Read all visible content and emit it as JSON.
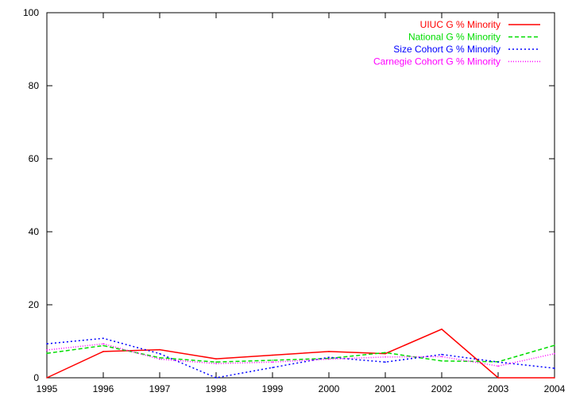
{
  "chart_data": {
    "type": "line",
    "title": "",
    "xlabel": "",
    "ylabel": "",
    "x": [
      1995,
      1996,
      1997,
      1998,
      1999,
      2000,
      2001,
      2002,
      2003,
      2004
    ],
    "xlim": [
      1995,
      2004
    ],
    "ylim": [
      0,
      100
    ],
    "xticks": [
      "1995",
      "1996",
      "1997",
      "1998",
      "1999",
      "2000",
      "2001",
      "2002",
      "2003",
      "2004"
    ],
    "yticks": [
      "0",
      "20",
      "40",
      "60",
      "80",
      "100"
    ],
    "grid": false,
    "legend_position": "top-right",
    "series": [
      {
        "name": "UIUC G % Minority",
        "color": "#ff0000",
        "dash": "solid",
        "values": [
          0.0,
          7.2,
          7.7,
          5.2,
          6.2,
          7.2,
          6.6,
          13.3,
          0.0,
          0.0
        ]
      },
      {
        "name": "National G % Minority",
        "color": "#00dd00",
        "dash": "dashed",
        "values": [
          6.7,
          8.8,
          5.5,
          4.3,
          4.8,
          5.3,
          6.9,
          4.6,
          4.4,
          8.9
        ]
      },
      {
        "name": "Size Cohort G % Minority",
        "color": "#0000ff",
        "dash": "dotted",
        "values": [
          9.3,
          10.8,
          6.6,
          0.0,
          2.8,
          5.6,
          4.3,
          6.4,
          4.3,
          2.6
        ]
      },
      {
        "name": "Carnegie Cohort G % Minority",
        "color": "#ff00ff",
        "dash": "fine-dotted",
        "values": [
          7.6,
          9.3,
          5.1,
          3.9,
          4.3,
          5.1,
          5.7,
          5.8,
          3.2,
          6.6
        ]
      }
    ]
  }
}
